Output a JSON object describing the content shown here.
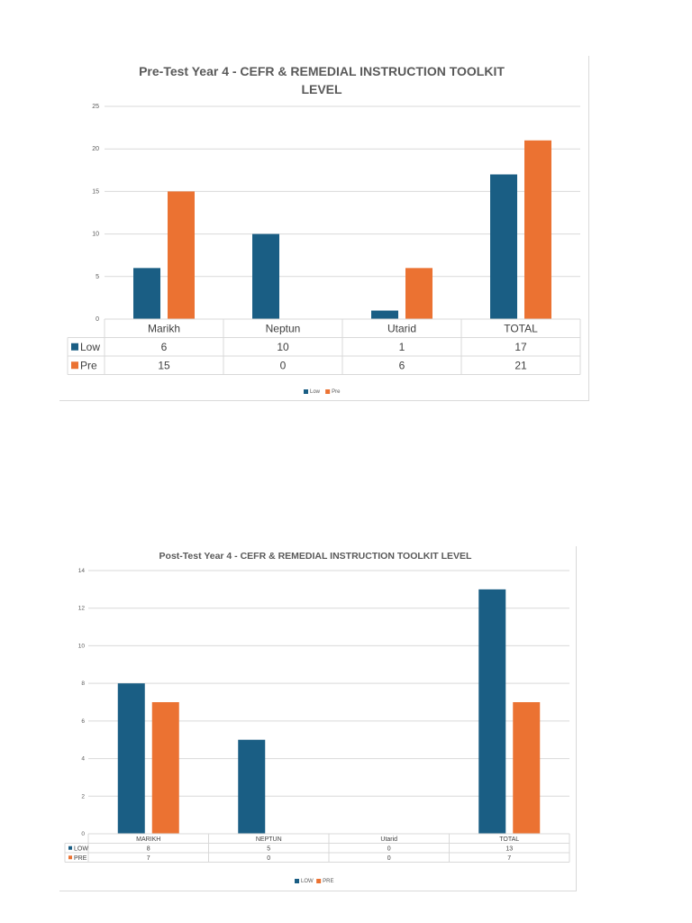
{
  "colors": {
    "low": "#1a5e84",
    "pre": "#eb7232",
    "grid": "#d9d9d9",
    "text": "#595959"
  },
  "chart_data": [
    {
      "type": "bar",
      "title": "Pre-Test Year 4 - CEFR & REMEDIAL INSTRUCTION TOOLKIT LEVEL",
      "title_lines": [
        "Pre-Test Year 4 - CEFR & REMEDIAL INSTRUCTION TOOLKIT",
        "LEVEL"
      ],
      "categories": [
        "Marikh",
        "Neptun",
        "Utarid",
        "TOTAL"
      ],
      "series": [
        {
          "name": "Low",
          "values": [
            6,
            10,
            1,
            17
          ]
        },
        {
          "name": "Pre",
          "values": [
            15,
            0,
            6,
            21
          ]
        }
      ],
      "ylim": [
        0,
        25
      ],
      "yticks": [
        0,
        5,
        10,
        15,
        20,
        25
      ],
      "grid": true,
      "data_table": true,
      "legend": "bottom",
      "xlabel": "",
      "ylabel": ""
    },
    {
      "type": "bar",
      "title": "Post-Test Year 4 -  CEFR & REMEDIAL INSTRUCTION TOOLKIT LEVEL",
      "title_lines": [
        "Post-Test Year 4 -  CEFR & REMEDIAL INSTRUCTION TOOLKIT LEVEL"
      ],
      "categories": [
        "MARIKH",
        "NEPTUN",
        "Utarid",
        "TOTAL"
      ],
      "series": [
        {
          "name": "LOW",
          "values": [
            8,
            5,
            0,
            13
          ]
        },
        {
          "name": "PRE",
          "values": [
            7,
            0,
            0,
            7
          ]
        }
      ],
      "ylim": [
        0,
        14
      ],
      "yticks": [
        0,
        2,
        4,
        6,
        8,
        10,
        12,
        14
      ],
      "grid": true,
      "data_table": true,
      "legend": "bottom",
      "xlabel": "",
      "ylabel": ""
    }
  ]
}
